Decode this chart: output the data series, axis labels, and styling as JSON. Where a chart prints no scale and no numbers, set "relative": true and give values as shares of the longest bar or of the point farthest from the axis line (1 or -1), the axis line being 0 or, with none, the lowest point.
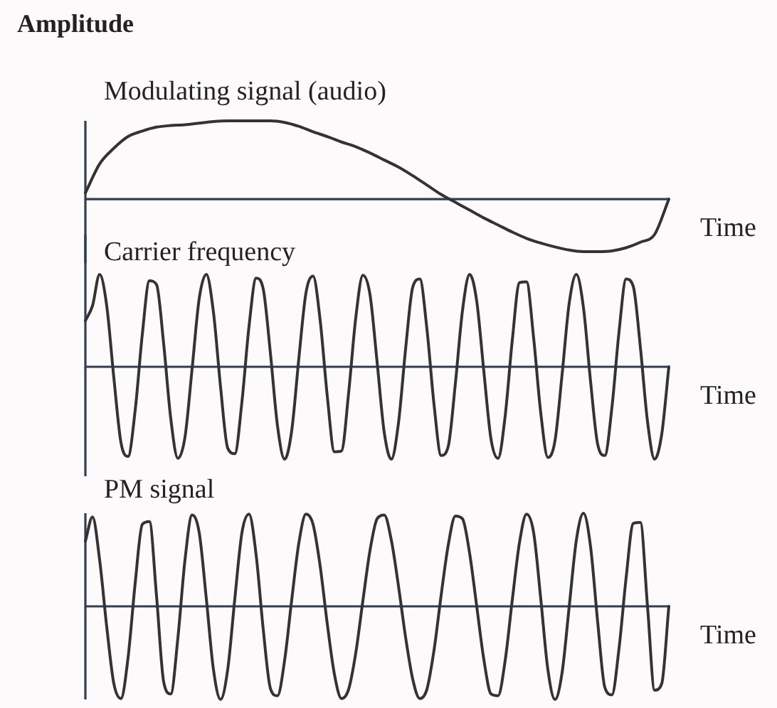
{
  "chart_data": [
    {
      "type": "line",
      "title": "Modulating signal (audio)",
      "ylabel": "Amplitude",
      "xlabel": "Time",
      "relative": true,
      "color": "#333333",
      "categories": [
        null,
        null,
        null,
        null,
        null,
        null,
        null,
        null,
        null,
        null,
        null,
        null,
        null,
        null,
        null,
        null,
        null,
        null,
        null,
        null,
        null,
        null,
        null,
        null,
        null,
        null,
        null,
        null,
        null,
        null,
        null,
        null,
        null,
        null,
        null,
        null,
        null,
        null,
        null,
        null,
        null,
        null
      ],
      "values": [
        0.08,
        0.45,
        0.65,
        0.8,
        0.87,
        0.92,
        0.94,
        0.95,
        0.97,
        0.99,
        1,
        1,
        1,
        1,
        0.98,
        0.93,
        0.86,
        0.8,
        0.73,
        0.67,
        0.59,
        0.5,
        0.41,
        0.3,
        0.18,
        0.06,
        -0.04,
        -0.14,
        -0.24,
        -0.33,
        -0.42,
        -0.5,
        -0.56,
        -0.61,
        -0.65,
        -0.67,
        -0.67,
        -0.66,
        -0.62,
        -0.55,
        -0.45,
        0
      ]
    },
    {
      "type": "line",
      "title": "Carrier frequency",
      "xlabel": "Time",
      "relative": true,
      "color": "#333333",
      "categories": [
        null,
        null,
        null,
        null,
        null,
        null,
        null,
        null,
        null,
        null,
        null,
        null,
        null,
        null,
        null,
        null,
        null,
        null,
        null,
        null,
        null,
        null,
        null,
        null,
        null,
        null,
        null,
        null,
        null,
        null,
        null,
        null,
        null,
        null,
        null,
        null,
        null,
        null,
        null,
        null,
        null,
        null,
        null,
        null,
        null,
        null,
        null,
        null,
        null,
        null,
        null,
        null,
        null,
        null,
        null,
        null,
        null,
        null,
        null,
        null,
        null,
        null,
        null,
        null,
        null,
        null,
        null,
        null,
        null,
        null,
        null,
        null,
        null,
        null,
        null,
        null,
        null,
        null,
        null,
        null,
        null,
        null,
        null
      ],
      "values": [
        0.5,
        0.66,
        1,
        0.66,
        -0.12,
        -0.82,
        -0.97,
        -0.47,
        0.35,
        0.93,
        0.89,
        0.25,
        -0.56,
        -0.99,
        -0.76,
        -0.02,
        0.74,
        1,
        0.59,
        -0.22,
        -0.88,
        -0.94,
        -0.38,
        0.44,
        0.96,
        0.84,
        0.15,
        -0.64,
        -1,
        -0.69,
        0.09,
        0.8,
        0.98,
        0.5,
        -0.32,
        -0.92,
        -0.91,
        -0.28,
        0.53,
        0.99,
        0.78,
        0.05,
        -0.71,
        -1,
        -0.61,
        0.19,
        0.86,
        0.95,
        0.41,
        -0.41,
        -0.96,
        -0.86,
        -0.18,
        0.61,
        1,
        0.71,
        -0.05,
        -0.78,
        -0.99,
        -0.53,
        0.29,
        0.91,
        0.92,
        0.31,
        -0.5,
        -0.98,
        -0.8,
        -0.08,
        0.69,
        1,
        0.64,
        -0.16,
        -0.84,
        -0.96,
        -0.44,
        0.38,
        0.95,
        0.87,
        0.21,
        -0.59,
        -1,
        -0.73,
        0
      ]
    },
    {
      "type": "line",
      "title": "PM signal",
      "xlabel": "Time",
      "relative": true,
      "color": "#333333",
      "categories": [
        null,
        null,
        null,
        null,
        null,
        null,
        null,
        null,
        null,
        null,
        null,
        null,
        null,
        null,
        null,
        null,
        null,
        null,
        null,
        null,
        null,
        null,
        null,
        null,
        null,
        null,
        null,
        null,
        null,
        null,
        null,
        null,
        null,
        null,
        null,
        null,
        null,
        null,
        null,
        null,
        null,
        null,
        null,
        null,
        null,
        null,
        null,
        null,
        null,
        null,
        null,
        null,
        null,
        null,
        null,
        null,
        null,
        null,
        null,
        null,
        null,
        null,
        null,
        null,
        null,
        null,
        null,
        null,
        null,
        null,
        null,
        null,
        null,
        null,
        null,
        null,
        null,
        null,
        null,
        null,
        null,
        null,
        null
      ],
      "values": [
        0.7,
        0.96,
        0.5,
        -0.22,
        -0.83,
        -0.99,
        -0.55,
        0.25,
        0.88,
        0.91,
        0.11,
        -0.81,
        -0.94,
        -0.34,
        0.5,
        0.98,
        0.79,
        0.08,
        -0.68,
        -1,
        -0.68,
        0.08,
        0.79,
        0.99,
        0.55,
        -0.25,
        -0.88,
        -0.96,
        -0.58,
        0.07,
        0.68,
        0.99,
        0.88,
        0.43,
        -0.19,
        -0.73,
        -0.99,
        -0.89,
        -0.5,
        0.06,
        0.6,
        0.94,
        0.98,
        0.71,
        0.22,
        -0.33,
        -0.78,
        -0.99,
        -0.89,
        -0.47,
        0.12,
        0.66,
        0.97,
        0.94,
        0.57,
        0,
        -0.57,
        -0.94,
        -0.96,
        -0.58,
        0.07,
        0.68,
        0.99,
        0.79,
        0.08,
        -0.68,
        -1,
        -0.71,
        0,
        0.71,
        1,
        0.64,
        -0.17,
        -0.87,
        -0.95,
        -0.45,
        0.31,
        0.89,
        0.9,
        0,
        -0.9,
        -0.83,
        0
      ]
    }
  ]
}
